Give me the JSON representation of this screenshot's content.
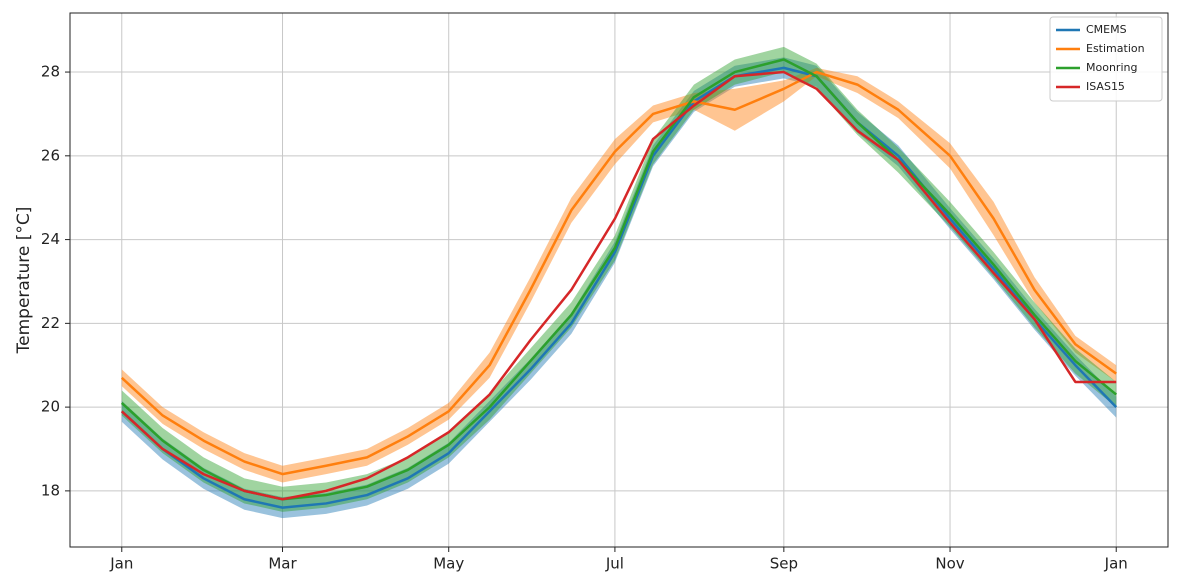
{
  "chart_data": {
    "type": "line",
    "ylabel": "Temperature [°C]",
    "x": [
      0,
      15,
      30,
      45,
      59,
      75,
      90,
      105,
      120,
      135,
      150,
      165,
      181,
      195,
      210,
      225,
      243,
      255,
      270,
      285,
      304,
      320,
      335,
      350,
      365
    ],
    "xlim": [
      -19,
      384
    ],
    "xticks": [
      {
        "value": 0,
        "label": "Jan"
      },
      {
        "value": 59,
        "label": "Mar"
      },
      {
        "value": 120,
        "label": "May"
      },
      {
        "value": 181,
        "label": "Jul"
      },
      {
        "value": 243,
        "label": "Sep"
      },
      {
        "value": 304,
        "label": "Nov"
      },
      {
        "value": 365,
        "label": "Jan"
      }
    ],
    "ylim": [
      16.66,
      29.41
    ],
    "yticks": [
      18,
      20,
      22,
      24,
      26,
      28
    ],
    "grid": true,
    "legend": "upper right",
    "series": [
      {
        "name": "CMEMS",
        "color": "#1f77b4",
        "values": [
          19.9,
          19.0,
          18.3,
          17.8,
          17.6,
          17.7,
          17.9,
          18.3,
          18.9,
          19.9,
          20.9,
          22.0,
          23.7,
          26.0,
          27.3,
          27.9,
          28.1,
          27.9,
          26.8,
          26.0,
          24.5,
          23.3,
          22.1,
          21.0,
          20.0
        ],
        "lower": [
          19.65,
          18.75,
          18.05,
          17.55,
          17.35,
          17.45,
          17.65,
          18.05,
          18.65,
          19.65,
          20.65,
          21.75,
          23.45,
          25.75,
          27.05,
          27.65,
          27.85,
          27.65,
          26.55,
          25.75,
          24.25,
          23.05,
          21.85,
          20.75,
          19.75
        ],
        "upper": [
          20.15,
          19.25,
          18.55,
          18.05,
          17.85,
          17.95,
          18.15,
          18.55,
          19.15,
          20.15,
          21.15,
          22.25,
          23.95,
          26.25,
          27.55,
          28.15,
          28.35,
          28.15,
          27.05,
          26.25,
          24.75,
          23.55,
          22.35,
          21.25,
          20.25
        ]
      },
      {
        "name": "Estimation",
        "color": "#ff7f0e",
        "values": [
          20.7,
          19.8,
          19.2,
          18.7,
          18.4,
          18.6,
          18.8,
          19.3,
          19.9,
          21.0,
          22.8,
          24.7,
          26.1,
          27.0,
          27.3,
          27.1,
          27.6,
          28.0,
          27.7,
          27.1,
          26.0,
          24.5,
          22.8,
          21.5,
          20.8
        ],
        "lower": [
          20.5,
          19.6,
          19.0,
          18.5,
          18.2,
          18.4,
          18.6,
          19.1,
          19.7,
          20.7,
          22.5,
          24.4,
          25.8,
          26.8,
          27.1,
          26.6,
          27.3,
          27.9,
          27.5,
          26.9,
          25.7,
          24.1,
          22.5,
          21.3,
          20.6
        ],
        "upper": [
          20.9,
          20.0,
          19.4,
          18.9,
          18.6,
          18.8,
          19.0,
          19.5,
          20.1,
          21.3,
          23.1,
          25.0,
          26.4,
          27.2,
          27.5,
          27.6,
          27.8,
          28.1,
          27.9,
          27.3,
          26.3,
          24.9,
          23.1,
          21.7,
          21.0
        ]
      },
      {
        "name": "Moonring",
        "color": "#2ca02c",
        "values": [
          20.1,
          19.2,
          18.5,
          18.0,
          17.8,
          17.9,
          18.1,
          18.5,
          19.1,
          20.0,
          21.1,
          22.2,
          23.8,
          26.1,
          27.4,
          28.0,
          28.3,
          27.9,
          26.8,
          25.9,
          24.6,
          23.4,
          22.2,
          21.1,
          20.3
        ],
        "lower": [
          19.8,
          18.9,
          18.2,
          17.7,
          17.5,
          17.6,
          17.8,
          18.2,
          18.8,
          19.7,
          20.8,
          21.9,
          23.5,
          25.8,
          27.1,
          27.7,
          28.0,
          27.6,
          26.5,
          25.6,
          24.3,
          23.1,
          21.9,
          20.8,
          20.0
        ],
        "upper": [
          20.4,
          19.5,
          18.8,
          18.3,
          18.1,
          18.2,
          18.4,
          18.8,
          19.4,
          20.3,
          21.4,
          22.5,
          24.1,
          26.4,
          27.7,
          28.3,
          28.6,
          28.2,
          27.1,
          26.2,
          24.9,
          23.7,
          22.5,
          21.4,
          20.6
        ]
      },
      {
        "name": "ISAS15",
        "color": "#d62728",
        "values": [
          19.9,
          19.0,
          18.4,
          18.0,
          17.8,
          18.0,
          18.3,
          18.8,
          19.4,
          20.3,
          21.6,
          22.8,
          24.5,
          26.4,
          27.2,
          27.9,
          28.0,
          27.6,
          26.6,
          25.9,
          24.4,
          23.2,
          22.1,
          20.6,
          20.6
        ]
      }
    ]
  }
}
